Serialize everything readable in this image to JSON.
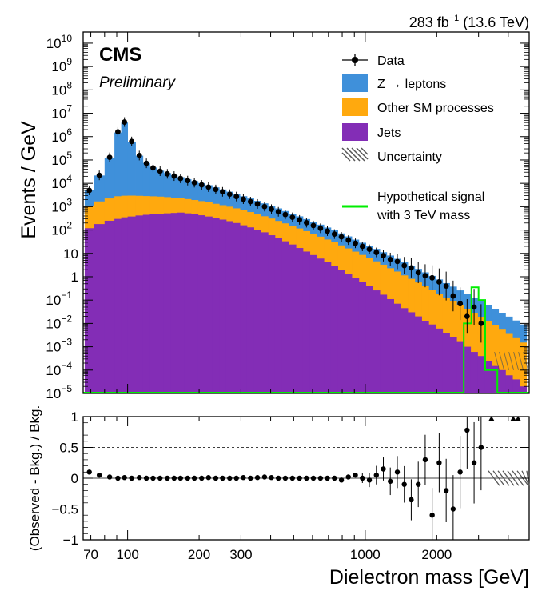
{
  "header": {
    "experiment": "CMS",
    "status": "Preliminary",
    "lumi": "283 fb",
    "lumi_sup": "−1",
    "lumi_energy": " (13.6 TeV)"
  },
  "legend": {
    "data": "Data",
    "z": "Z → leptons",
    "other": "Other SM processes",
    "jets": "Jets",
    "unc": "Uncertainty",
    "signal_line1": "Hypothetical signal",
    "signal_line2": "with 3 TeV mass"
  },
  "chart_data": [
    {
      "type": "histogram-stack",
      "ylabel": "Events / GeV",
      "yscale": "log",
      "ylim": [
        1e-05,
        30000000000.0
      ],
      "xlim": [
        65,
        4900
      ],
      "xscale": "log",
      "y_tick_labels": [
        "10",
        "1",
        "10"
      ],
      "y_tick_exponents": [
        "−5",
        "−4",
        "−3",
        "−2",
        "−1",
        "",
        "",
        "2",
        "3",
        "4",
        "5",
        "6",
        "7",
        "8",
        "9",
        "10"
      ],
      "colors": {
        "z": "#3f90da",
        "other": "#ffa90e",
        "jets": "#832db6",
        "signal": "#00ee00",
        "data": "#000000"
      },
      "bin_edges": [
        66,
        72,
        80,
        88,
        94,
        100,
        108,
        116,
        124,
        133,
        142,
        152,
        162,
        173,
        185,
        198,
        212,
        227,
        243,
        260,
        278,
        297,
        318,
        340,
        364,
        390,
        417,
        446,
        477,
        511,
        547,
        585,
        626,
        670,
        717,
        767,
        821,
        878,
        940,
        1006,
        1076,
        1152,
        1232,
        1319,
        1411,
        1510,
        1616,
        1729,
        1850,
        1980,
        2118,
        2267,
        2425,
        2595,
        2777,
        2972,
        3180,
        3403,
        3641,
        3896,
        4169,
        4461,
        4774
      ],
      "series": [
        {
          "name": "Jets",
          "values": [
            120,
            180,
            250,
            300,
            350,
            380,
            420,
            450,
            480,
            500,
            520,
            540,
            560,
            520,
            480,
            430,
            380,
            330,
            280,
            240,
            200,
            160,
            130,
            100,
            80,
            60,
            45,
            33,
            24,
            17,
            12,
            8.5,
            6,
            4.2,
            2.9,
            2,
            1.3,
            0.9,
            0.6,
            0.4,
            0.26,
            0.17,
            0.11,
            0.07,
            0.045,
            0.03,
            0.02,
            0.013,
            0.009,
            0.006,
            0.004,
            0.0025,
            0.0016,
            0.001,
            0.0006,
            0.0004,
            0.00025,
            0.00015,
            0.0001,
            6e-05,
            4e-05,
            2e-05
          ]
        },
        {
          "name": "Other SM processes",
          "values": [
            1000,
            1500,
            2000,
            2500,
            2600,
            2600,
            2500,
            2400,
            2300,
            2200,
            2050,
            1900,
            1750,
            1600,
            1450,
            1300,
            1150,
            1000,
            880,
            760,
            650,
            550,
            460,
            380,
            310,
            250,
            200,
            160,
            125,
            100,
            78,
            60,
            46,
            35,
            27,
            20,
            15,
            11,
            8,
            6,
            4.3,
            3.1,
            2.2,
            1.6,
            1.1,
            0.78,
            0.55,
            0.38,
            0.26,
            0.18,
            0.12,
            0.085,
            0.058,
            0.04,
            0.027,
            0.018,
            0.012,
            0.008,
            0.0053,
            0.0035,
            0.0023,
            0.0015
          ]
        },
        {
          "name": "Z → leptons",
          "values": [
            4000,
            20000,
            120000,
            1500000,
            4000000,
            600000,
            150000,
            70000,
            45000,
            32000,
            25000,
            20000,
            16000,
            13000,
            10500,
            8500,
            6800,
            5400,
            4300,
            3400,
            2700,
            2100,
            1650,
            1300,
            1000,
            780,
            600,
            460,
            350,
            270,
            205,
            155,
            118,
            89,
            67,
            50,
            37,
            27,
            20,
            15,
            11,
            8,
            5.8,
            4.2,
            3,
            2.2,
            1.6,
            1.15,
            0.82,
            0.58,
            0.41,
            0.29,
            0.2,
            0.14,
            0.1,
            0.07,
            0.048,
            0.033,
            0.023,
            0.016,
            0.011,
            0.0075
          ]
        }
      ],
      "data_points": {
        "x": [
          69,
          76,
          84,
          91,
          97,
          104,
          112,
          120,
          128,
          137,
          147,
          157,
          167,
          179,
          191,
          205,
          219,
          235,
          251,
          269,
          287,
          307,
          329,
          352,
          377,
          403,
          431,
          461,
          494,
          529,
          566,
          605,
          648,
          693,
          742,
          794,
          849,
          909,
          973,
          1041,
          1114,
          1192,
          1275,
          1365,
          1460,
          1562,
          1672,
          1789,
          1914,
          2048,
          2192,
          2345,
          2510,
          2685,
          2873,
          3075
        ],
        "y": [
          5000,
          22000,
          130000,
          1600000,
          4200000,
          620000,
          155000,
          72000,
          46000,
          33000,
          25500,
          20500,
          16200,
          13100,
          10700,
          8600,
          6900,
          5450,
          4330,
          3430,
          2720,
          2100,
          1650,
          1310,
          1010,
          785,
          605,
          462,
          352,
          272,
          206,
          156,
          119,
          90,
          67,
          51,
          37,
          27,
          20,
          15,
          11,
          8,
          5.5,
          4.5,
          3,
          2.4,
          1.5,
          1.1,
          0.9,
          0.6,
          0.4,
          0.15,
          0.07,
          0.02,
          0.05,
          0.01
        ]
      },
      "signal": {
        "name": "Hypothetical signal",
        "x_range": [
          2600,
          3600
        ],
        "peak": 0.35
      }
    },
    {
      "type": "scatter",
      "xlabel": "Dielectron mass [GeV]",
      "ylabel": "(Observed - Bkg.) / Bkg.",
      "ylim": [
        -1,
        1
      ],
      "xscale": "log",
      "x_ticks": [
        70,
        100,
        200,
        300,
        1000,
        2000
      ],
      "y_ticks": [
        -1,
        -0.5,
        0,
        0.5,
        1
      ],
      "y_tick_labels": [
        "−1",
        "−0.5",
        "0",
        "0.5",
        "1"
      ],
      "dashed_lines": [
        -0.5,
        0.5
      ],
      "x": [
        69,
        76,
        84,
        91,
        97,
        104,
        112,
        120,
        128,
        137,
        147,
        157,
        167,
        179,
        191,
        205,
        219,
        235,
        251,
        269,
        287,
        307,
        329,
        352,
        377,
        403,
        431,
        461,
        494,
        529,
        566,
        605,
        648,
        693,
        742,
        794,
        849,
        909,
        973,
        1041,
        1114,
        1192,
        1275,
        1365,
        1460,
        1562,
        1672,
        1789,
        1914,
        2048,
        2192,
        2345,
        2510,
        2685,
        2873,
        3075
      ],
      "y": [
        0.1,
        0.05,
        0.02,
        0.0,
        0.01,
        0.0,
        0.01,
        0.0,
        0.0,
        0.0,
        0.0,
        0.0,
        0.0,
        0.0,
        0.0,
        0.0,
        0.01,
        0.0,
        0.0,
        0.0,
        0.0,
        0.01,
        0.0,
        0.01,
        0.02,
        0.01,
        0.0,
        0.0,
        0.0,
        0.0,
        0.0,
        0.0,
        0.0,
        0.0,
        0.0,
        -0.03,
        0.02,
        0.05,
        0.0,
        -0.03,
        0.05,
        0.15,
        -0.05,
        0.1,
        -0.1,
        -0.35,
        -0.1,
        0.3,
        -0.6,
        0.25,
        -0.2,
        -0.5,
        0.1,
        0.78,
        0.25,
        0.5
      ]
    }
  ]
}
